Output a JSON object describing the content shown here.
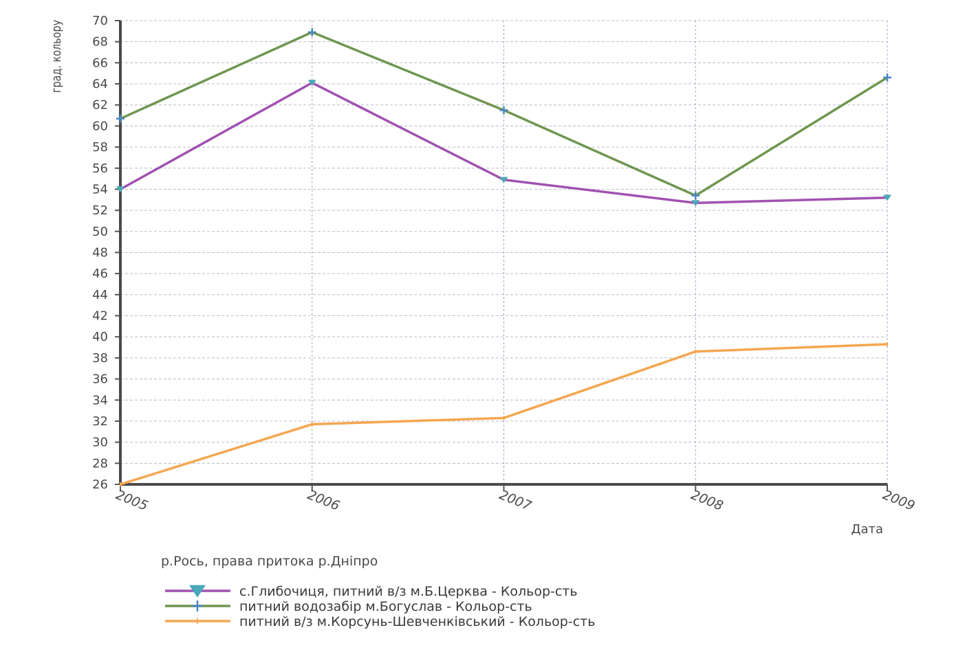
{
  "chart_data": {
    "type": "line",
    "ylabel": "град. кольору",
    "xlabel": "Дата",
    "subtitle": "р.Рось, права притока р.Дніпро",
    "x": [
      "2005",
      "2006",
      "2007",
      "2008",
      "2009"
    ],
    "ylim": [
      26,
      70
    ],
    "y_ticks": [
      26,
      28,
      30,
      32,
      34,
      36,
      38,
      40,
      42,
      44,
      46,
      48,
      50,
      52,
      54,
      56,
      58,
      60,
      62,
      64,
      66,
      68,
      70
    ],
    "grid": true,
    "legend_position": "bottom",
    "series": [
      {
        "name": "с.Глибочиця, питний в/з м.Б.Церква - Кольор-сть",
        "values": [
          54.0,
          64.1,
          54.9,
          52.7,
          53.2
        ],
        "color": "#a052b0",
        "marker": "triangle-down",
        "marker_color": "#48a8b8"
      },
      {
        "name": "питний водозабір м.Богуслав  - Кольор-сть",
        "values": [
          60.7,
          68.9,
          61.5,
          53.4,
          64.6
        ],
        "color": "#6f9650",
        "marker": "plus",
        "marker_color": "#4a86c4"
      },
      {
        "name": "питний в/з м.Корсунь-Шевченківський - Кольор-сть",
        "values": [
          26.0,
          31.7,
          32.3,
          38.6,
          39.3
        ],
        "color": "#f5a650",
        "marker": "dash",
        "marker_color": "#f5a650"
      }
    ]
  }
}
